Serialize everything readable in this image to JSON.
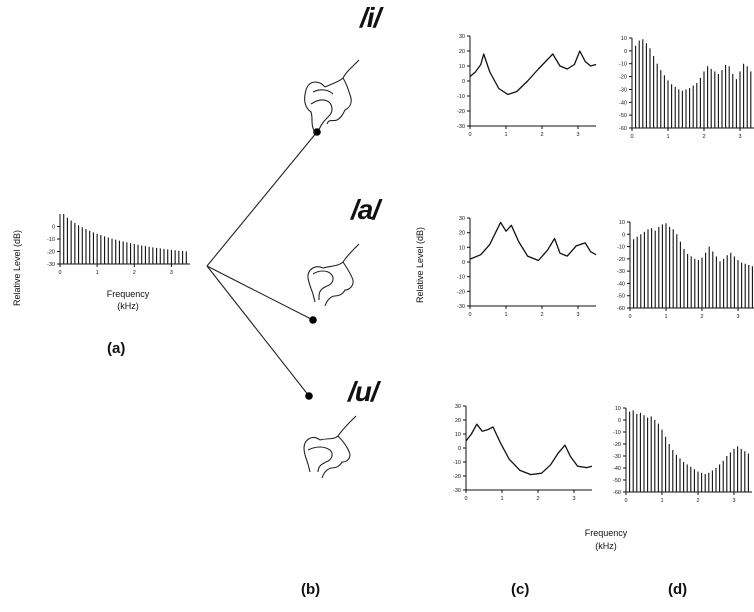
{
  "vowels": [
    "/i/",
    "/a/",
    "/u/"
  ],
  "panel_labels": [
    "(a)",
    "(b)",
    "(c)",
    "(d)"
  ],
  "axis_text": {
    "ylabel": "Relative Level (dB)",
    "xlabel_a": "Frequency",
    "xunit_a": "(kHz)",
    "xlabel_cd": "Frequency",
    "xunit_cd": "(kHz)"
  },
  "colors": {
    "ink": "#111111",
    "background": "#ffffff"
  },
  "chart_data": [
    {
      "panel": "(a)",
      "type": "bar",
      "description_of_marks": "source harmonic spectrum, levels falling with frequency",
      "ylabel": "Relative Level (dB)",
      "xlabel": "Frequency (kHz)",
      "ylim": [
        -30,
        10
      ],
      "xlim": [
        0,
        3.5
      ],
      "yticks": [
        0,
        -10,
        -20,
        -30
      ],
      "xticks": [
        0,
        1,
        2,
        3
      ],
      "f0_khz": 0.1,
      "values": [
        10,
        7,
        4.8,
        2.8,
        1,
        -0.6,
        -2,
        -3.4,
        -4.7,
        -5.8,
        -6.9,
        -7.9,
        -8.8,
        -9.7,
        -10.5,
        -11.3,
        -12,
        -12.7,
        -13.4,
        -14,
        -14.6,
        -15.2,
        -15.7,
        -16.2,
        -16.7,
        -17.1,
        -17.5,
        -17.9,
        -18.3,
        -18.7,
        -19,
        -19.3,
        -19.6,
        -19.9
      ]
    },
    {
      "panel": "(c) /i/",
      "type": "line",
      "ylim": [
        -30,
        30
      ],
      "xlim": [
        0,
        3.5
      ],
      "yticks": [
        30,
        20,
        10,
        0,
        -10,
        -20,
        -30
      ],
      "xticks": [
        0,
        1,
        2,
        3
      ],
      "x": [
        0,
        0.15,
        0.3,
        0.38,
        0.55,
        0.8,
        1.05,
        1.3,
        1.6,
        1.9,
        2.1,
        2.3,
        2.5,
        2.7,
        2.9,
        3.05,
        3.2,
        3.35,
        3.5
      ],
      "y": [
        3,
        6,
        11,
        18,
        6,
        -5,
        -9,
        -7,
        0,
        8,
        13,
        18,
        10,
        8,
        11,
        20,
        13,
        10,
        11
      ]
    },
    {
      "panel": "(c) /a/",
      "type": "line",
      "ylim": [
        -30,
        30
      ],
      "xlim": [
        0,
        3.5
      ],
      "yticks": [
        30,
        20,
        10,
        0,
        -10,
        -20,
        -30
      ],
      "xticks": [
        0,
        1,
        2,
        3
      ],
      "x": [
        0,
        0.3,
        0.55,
        0.75,
        0.85,
        1.0,
        1.15,
        1.35,
        1.6,
        1.9,
        2.15,
        2.35,
        2.5,
        2.7,
        2.95,
        3.2,
        3.35,
        3.5
      ],
      "y": [
        2,
        5,
        12,
        22,
        27,
        21,
        25,
        14,
        4,
        1,
        8,
        16,
        6,
        4,
        11,
        13,
        7,
        5
      ]
    },
    {
      "panel": "(c) /u/",
      "type": "line",
      "ylim": [
        -30,
        30
      ],
      "xlim": [
        0,
        3.5
      ],
      "yticks": [
        30,
        20,
        10,
        0,
        -10,
        -20,
        -30
      ],
      "xticks": [
        0,
        1,
        2,
        3
      ],
      "x": [
        0,
        0.15,
        0.3,
        0.45,
        0.6,
        0.75,
        0.95,
        1.2,
        1.5,
        1.8,
        2.1,
        2.35,
        2.55,
        2.75,
        2.9,
        3.1,
        3.35,
        3.5
      ],
      "y": [
        5,
        10,
        17,
        12,
        13,
        15,
        4,
        -8,
        -16,
        -19,
        -18,
        -12,
        -4,
        2,
        -6,
        -13,
        -14,
        -13
      ]
    },
    {
      "panel": "(d) /i/",
      "type": "bar",
      "ylim": [
        -60,
        10
      ],
      "xlim": [
        0,
        3.5
      ],
      "yticks": [
        10,
        0,
        -10,
        -20,
        -30,
        -40,
        -50,
        -60
      ],
      "xticks": [
        0,
        1,
        2,
        3
      ],
      "f0_khz": 0.1,
      "values": [
        4,
        8,
        9,
        6,
        2,
        -4,
        -10,
        -15,
        -19,
        -23,
        -26,
        -28,
        -30,
        -31,
        -30,
        -29,
        -27,
        -25,
        -21,
        -16,
        -12,
        -14,
        -16,
        -18,
        -15,
        -11,
        -12,
        -18,
        -22,
        -16,
        -10,
        -12,
        -16,
        -19
      ]
    },
    {
      "panel": "(d) /a/",
      "type": "bar",
      "ylim": [
        -60,
        10
      ],
      "xlim": [
        0,
        3.5
      ],
      "yticks": [
        10,
        0,
        -10,
        -20,
        -30,
        -40,
        -50,
        -60
      ],
      "xticks": [
        0,
        1,
        2,
        3
      ],
      "f0_khz": 0.1,
      "values": [
        -4,
        -2,
        0,
        2,
        4,
        5,
        3,
        6,
        8,
        9,
        6,
        4,
        0,
        -6,
        -12,
        -16,
        -18,
        -20,
        -21,
        -19,
        -15,
        -10,
        -14,
        -18,
        -22,
        -20,
        -17,
        -15,
        -18,
        -21,
        -23,
        -24,
        -25,
        -26
      ]
    },
    {
      "panel": "(d) /u/",
      "type": "bar",
      "ylim": [
        -60,
        10
      ],
      "xlim": [
        0,
        3.5
      ],
      "yticks": [
        10,
        0,
        -10,
        -20,
        -30,
        -40,
        -50,
        -60
      ],
      "xticks": [
        0,
        1,
        2,
        3
      ],
      "f0_khz": 0.1,
      "values": [
        7,
        8,
        5,
        6,
        4,
        2,
        3,
        0,
        -3,
        -8,
        -14,
        -20,
        -25,
        -29,
        -32,
        -35,
        -37,
        -39,
        -41,
        -43,
        -44,
        -45,
        -44,
        -42,
        -40,
        -37,
        -34,
        -30,
        -27,
        -24,
        -22,
        -24,
        -26,
        -28
      ]
    }
  ]
}
